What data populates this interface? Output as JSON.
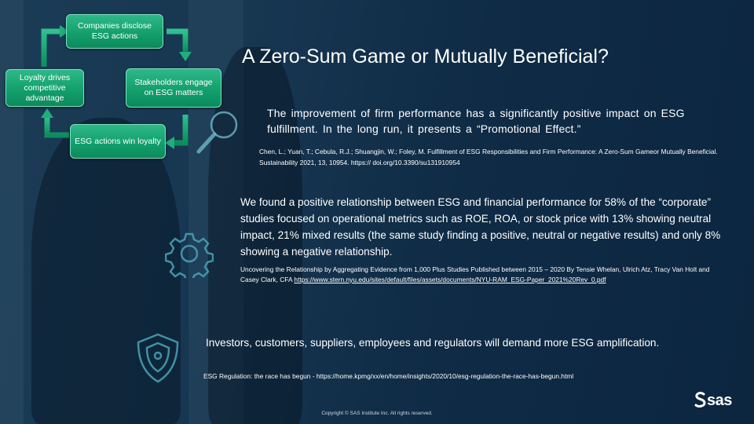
{
  "slide": {
    "title": "A Zero-Sum Game or Mutually Beneficial?",
    "cycle": {
      "steps": [
        "Companies disclose ESG actions",
        "Stakeholders engage on ESG matters",
        "ESG actions win loyalty",
        "Loyalty drives competitive advantage"
      ]
    },
    "section1": {
      "body": "The improvement of firm performance has a significantly positive impact on ESG fulfillment. In the long run, it presents a “Promotional Effect.”",
      "citation": "Chen, L.; Yuan, T.; Cebula, R.J.; Shuangjin, W.; Foley, M. Fulfillment of ESG Responsibilities and Firm Performance: A Zero-Sum Gameor Mutually Beneficial. Sustainability 2021, 13, 10954. https:// doi.org/10.3390/su131910954"
    },
    "section2": {
      "body": "We found a positive relationship between ESG and financial performance for 58% of the “corporate” studies focused on operational metrics such as ROE, ROA, or stock price with 13% showing neutral impact, 21% mixed results (the same study finding a positive, neutral or negative results) and only 8% showing a negative relationship.",
      "citation_text": "Uncovering the Relationship by Aggregating Evidence from 1,000 Plus Studies Published between 2015 – 2020 By Tensie Whelan, Ulrich Atz, Tracy Van Holt and Casey Clark, CFA ",
      "citation_link": "https://www.stern.nyu.edu/sites/default/files/assets/documents/NYU-RAM_ESG-Paper_2021%20Rev_0.pdf"
    },
    "section3": {
      "body": "Investors, customers, suppliers, employees and regulators will demand more ESG amplification.",
      "citation": "ESG Regulation: the race has begun - https://home.kpmg/xx/en/home/insights/2020/10/esg-regulation-the-race-has-begun.html"
    },
    "icons": [
      "magnifier-icon",
      "gear-icon",
      "shield-icon"
    ],
    "copyright": "Copyright © SAS Institute Inc. All rights reserved.",
    "logo_text": "sas",
    "colors": {
      "cycle_green": "#13a06d",
      "background": "#163550"
    }
  }
}
